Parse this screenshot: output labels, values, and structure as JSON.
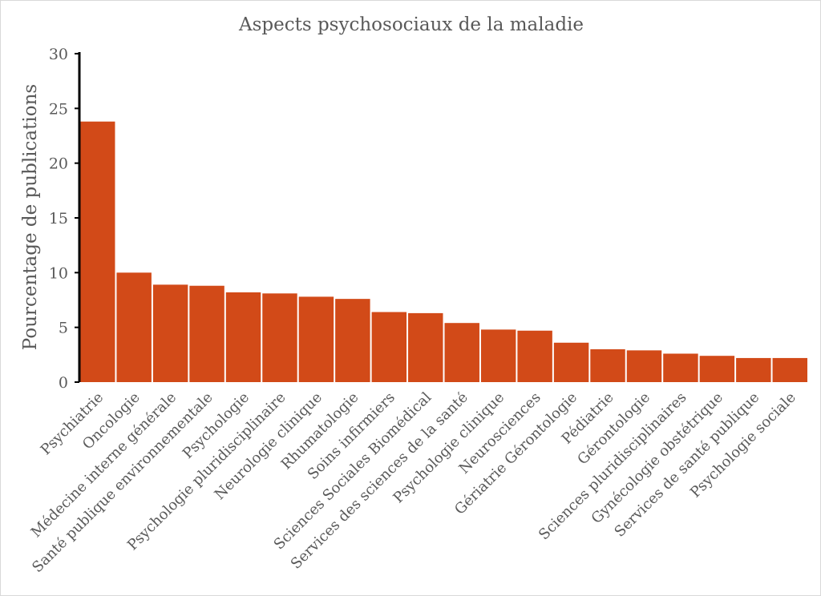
{
  "chart_data": {
    "type": "bar",
    "title": "Aspects psychosociaux de la maladie",
    "xlabel": "",
    "ylabel": "Pourcentage de publications",
    "ylim": [
      0,
      30
    ],
    "yticks": [
      "0",
      "5",
      "10",
      "15",
      "20",
      "25",
      "30"
    ],
    "grid": false,
    "legend": "none",
    "bar_color": "#d24a18",
    "categories": [
      "Psychiatrie",
      "Oncologie",
      "Médecine interne générale",
      "Santé publique environnementale",
      "Psychologie",
      "Psychologie pluridisciplinaire",
      "Neurologie clinique",
      "Rhumatologie",
      "Soins infirmiers",
      "Sciences Sociales Biomédical",
      "Services des sciences de la santé",
      "Psychologie clinique",
      "Neurosciences",
      "Gériatrie Gérontologie",
      "Pédiatrie",
      "Gérontologie",
      "Sciences pluridisciplinaires",
      "Gynécologie obstétrique",
      "Services de santé publique",
      "Psychologie sociale"
    ],
    "values": [
      23.8,
      10.0,
      8.9,
      8.8,
      8.2,
      8.1,
      7.8,
      7.6,
      6.4,
      6.3,
      5.4,
      4.8,
      4.7,
      3.6,
      3.0,
      2.9,
      2.6,
      2.4,
      2.2,
      2.2
    ]
  }
}
